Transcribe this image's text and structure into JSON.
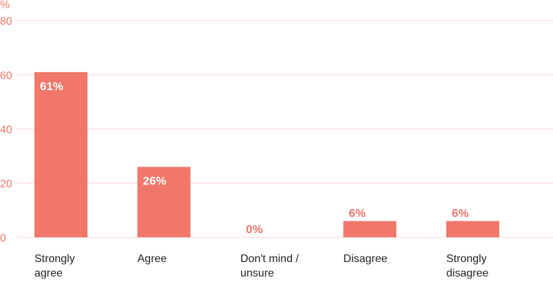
{
  "chart_data": {
    "type": "bar",
    "ylabel": "%",
    "ylim": [
      0,
      80
    ],
    "yticks": [
      0,
      20,
      40,
      60,
      80
    ],
    "grid": true,
    "categories": [
      [
        "Strongly",
        "agree"
      ],
      [
        "Agree"
      ],
      [
        "Don't mind /",
        "unsure"
      ],
      [
        "Disagree"
      ],
      [
        "Strongly",
        "disagree"
      ]
    ],
    "values": [
      61,
      26,
      0,
      6,
      6
    ],
    "data_labels": [
      "61%",
      "26%",
      "0%",
      "6%",
      "6%"
    ],
    "colors": {
      "bar": "#f0776a",
      "axis_text": "#f0776a",
      "grid": "#fbd5cf",
      "category_text": "#222222",
      "inside_label": "#ffffff"
    }
  }
}
